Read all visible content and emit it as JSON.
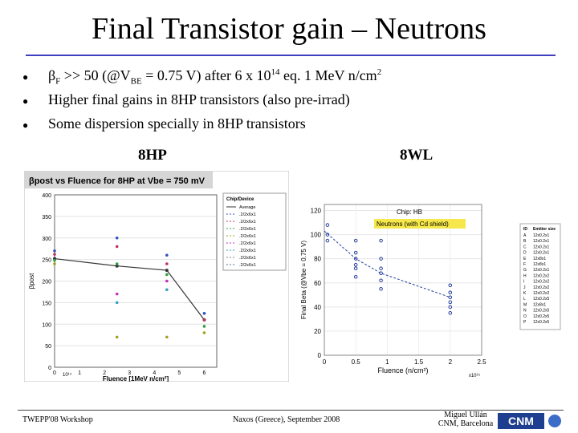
{
  "slide": {
    "title": "Final Transistor gain – Neutrons",
    "bullets": [
      {
        "prefix": "β",
        "sub1": "F",
        "mid": " >> 50 (@V",
        "sub2": "BE",
        "mid2": " = 0.75 V) after  6 x 10",
        "sup": "14",
        "end": " eq. 1 MeV n/cm",
        "sup2": "2"
      },
      {
        "text": "Higher final gains in 8HP transistors (also pre-irrad)"
      },
      {
        "text": "Some dispersion specially in 8HP transistors"
      }
    ],
    "label_left": "8HP",
    "label_right": "8WL"
  },
  "footer": {
    "left": "TWEPP'08 Workshop",
    "center": "Naxos (Greece), September 2008",
    "right_line1": "Miguel Ullán",
    "right_line2": "CNM, Barcelona",
    "logo_text": "CNM"
  },
  "chart_data": [
    {
      "type": "scatter",
      "title": "βpost vs Fluence for 8HP at Vbe = 750 mV",
      "xlabel": "Fluence [1MeV n/cm²]",
      "x_scale_label": "10¹⁴",
      "ylabel": "βpost",
      "ylim": [
        0,
        400
      ],
      "yticks": [
        0,
        50,
        100,
        150,
        200,
        250,
        300,
        350,
        400
      ],
      "xlim": [
        0,
        6.5
      ],
      "xticks": [
        0,
        1,
        2,
        3,
        4,
        5,
        6
      ],
      "legend_title": "Chip/Device",
      "legend": [
        "Average",
        ".2/2x6x1",
        ".2/2x6x1",
        ".2/2x6x1",
        ".2/2x6x1",
        ".2/2x6x1",
        ".2/2x6x1",
        ".2/2x6x1",
        ".2/2x6x1"
      ],
      "average": {
        "x": [
          0,
          2.5,
          4.5,
          6
        ],
        "y": [
          252,
          235,
          225,
          110
        ]
      },
      "points": [
        {
          "x": 0,
          "y": 270,
          "color": "#3050c0"
        },
        {
          "x": 0,
          "y": 262,
          "color": "#c03060"
        },
        {
          "x": 0,
          "y": 248,
          "color": "#30a040"
        },
        {
          "x": 0,
          "y": 240,
          "color": "#a0a020"
        },
        {
          "x": 2.5,
          "y": 300,
          "color": "#3050c0"
        },
        {
          "x": 2.5,
          "y": 280,
          "color": "#c03060"
        },
        {
          "x": 2.5,
          "y": 240,
          "color": "#30a040"
        },
        {
          "x": 2.5,
          "y": 170,
          "color": "#c030c0"
        },
        {
          "x": 2.5,
          "y": 150,
          "color": "#30a0c0"
        },
        {
          "x": 2.5,
          "y": 70,
          "color": "#a0a020"
        },
        {
          "x": 4.5,
          "y": 260,
          "color": "#3050c0"
        },
        {
          "x": 4.5,
          "y": 240,
          "color": "#c03060"
        },
        {
          "x": 4.5,
          "y": 215,
          "color": "#30a040"
        },
        {
          "x": 4.5,
          "y": 200,
          "color": "#c030c0"
        },
        {
          "x": 4.5,
          "y": 180,
          "color": "#30a0c0"
        },
        {
          "x": 4.5,
          "y": 70,
          "color": "#a0a020"
        },
        {
          "x": 6,
          "y": 125,
          "color": "#3050c0"
        },
        {
          "x": 6,
          "y": 110,
          "color": "#c03060"
        },
        {
          "x": 6,
          "y": 95,
          "color": "#30a040"
        },
        {
          "x": 6,
          "y": 80,
          "color": "#a0a020"
        }
      ]
    },
    {
      "type": "scatter",
      "title": "Chip: HB",
      "annotation": "Neutrons (with Cd shield)",
      "xlabel": "Fluence (n/cm²)",
      "x_scale_label": "x10¹⁵",
      "ylabel": "Final Beta (@Vbe = 0.75 V)",
      "xlim": [
        0,
        2.5
      ],
      "xticks": [
        0,
        0.5,
        1,
        1.5,
        2,
        2.5
      ],
      "ylim": [
        0,
        125
      ],
      "yticks": [
        0,
        20,
        40,
        60,
        80,
        100,
        120
      ],
      "average": {
        "x": [
          0,
          0.5,
          0.9,
          2
        ],
        "y": [
          103,
          80,
          68,
          48
        ]
      },
      "points": [
        {
          "x": 0.05,
          "y": 108
        },
        {
          "x": 0.05,
          "y": 100
        },
        {
          "x": 0.05,
          "y": 95
        },
        {
          "x": 0.5,
          "y": 95
        },
        {
          "x": 0.5,
          "y": 85
        },
        {
          "x": 0.5,
          "y": 80
        },
        {
          "x": 0.5,
          "y": 75
        },
        {
          "x": 0.5,
          "y": 72
        },
        {
          "x": 0.5,
          "y": 65
        },
        {
          "x": 0.9,
          "y": 95
        },
        {
          "x": 0.9,
          "y": 80
        },
        {
          "x": 0.9,
          "y": 72
        },
        {
          "x": 0.9,
          "y": 68
        },
        {
          "x": 0.9,
          "y": 62
        },
        {
          "x": 0.9,
          "y": 55
        },
        {
          "x": 2,
          "y": 58
        },
        {
          "x": 2,
          "y": 52
        },
        {
          "x": 2,
          "y": 48
        },
        {
          "x": 2,
          "y": 44
        },
        {
          "x": 2,
          "y": 40
        },
        {
          "x": 2,
          "y": 35
        }
      ],
      "legend_header": [
        "ID",
        "Emitter size"
      ],
      "legend": [
        [
          "A",
          "12x0.2x1"
        ],
        [
          "B",
          "12x0.2x1"
        ],
        [
          "C",
          "12x0.2x1"
        ],
        [
          "D",
          "12x0.2x1"
        ],
        [
          "E",
          "12x8x1"
        ],
        [
          "F",
          "12x8x1"
        ],
        [
          "G",
          "12x0.2x1"
        ],
        [
          "H",
          "12x0.2x2"
        ],
        [
          "I",
          "12x0.2x2"
        ],
        [
          "J",
          "12x0.2x2"
        ],
        [
          "K",
          "12x0.2x2"
        ],
        [
          "L",
          "12x0.2x5"
        ],
        [
          "M",
          "12x8x1"
        ],
        [
          "N",
          "12x0.2x5"
        ],
        [
          "O",
          "12x0.2x5"
        ],
        [
          "P",
          "12x0.2x5"
        ]
      ]
    }
  ]
}
